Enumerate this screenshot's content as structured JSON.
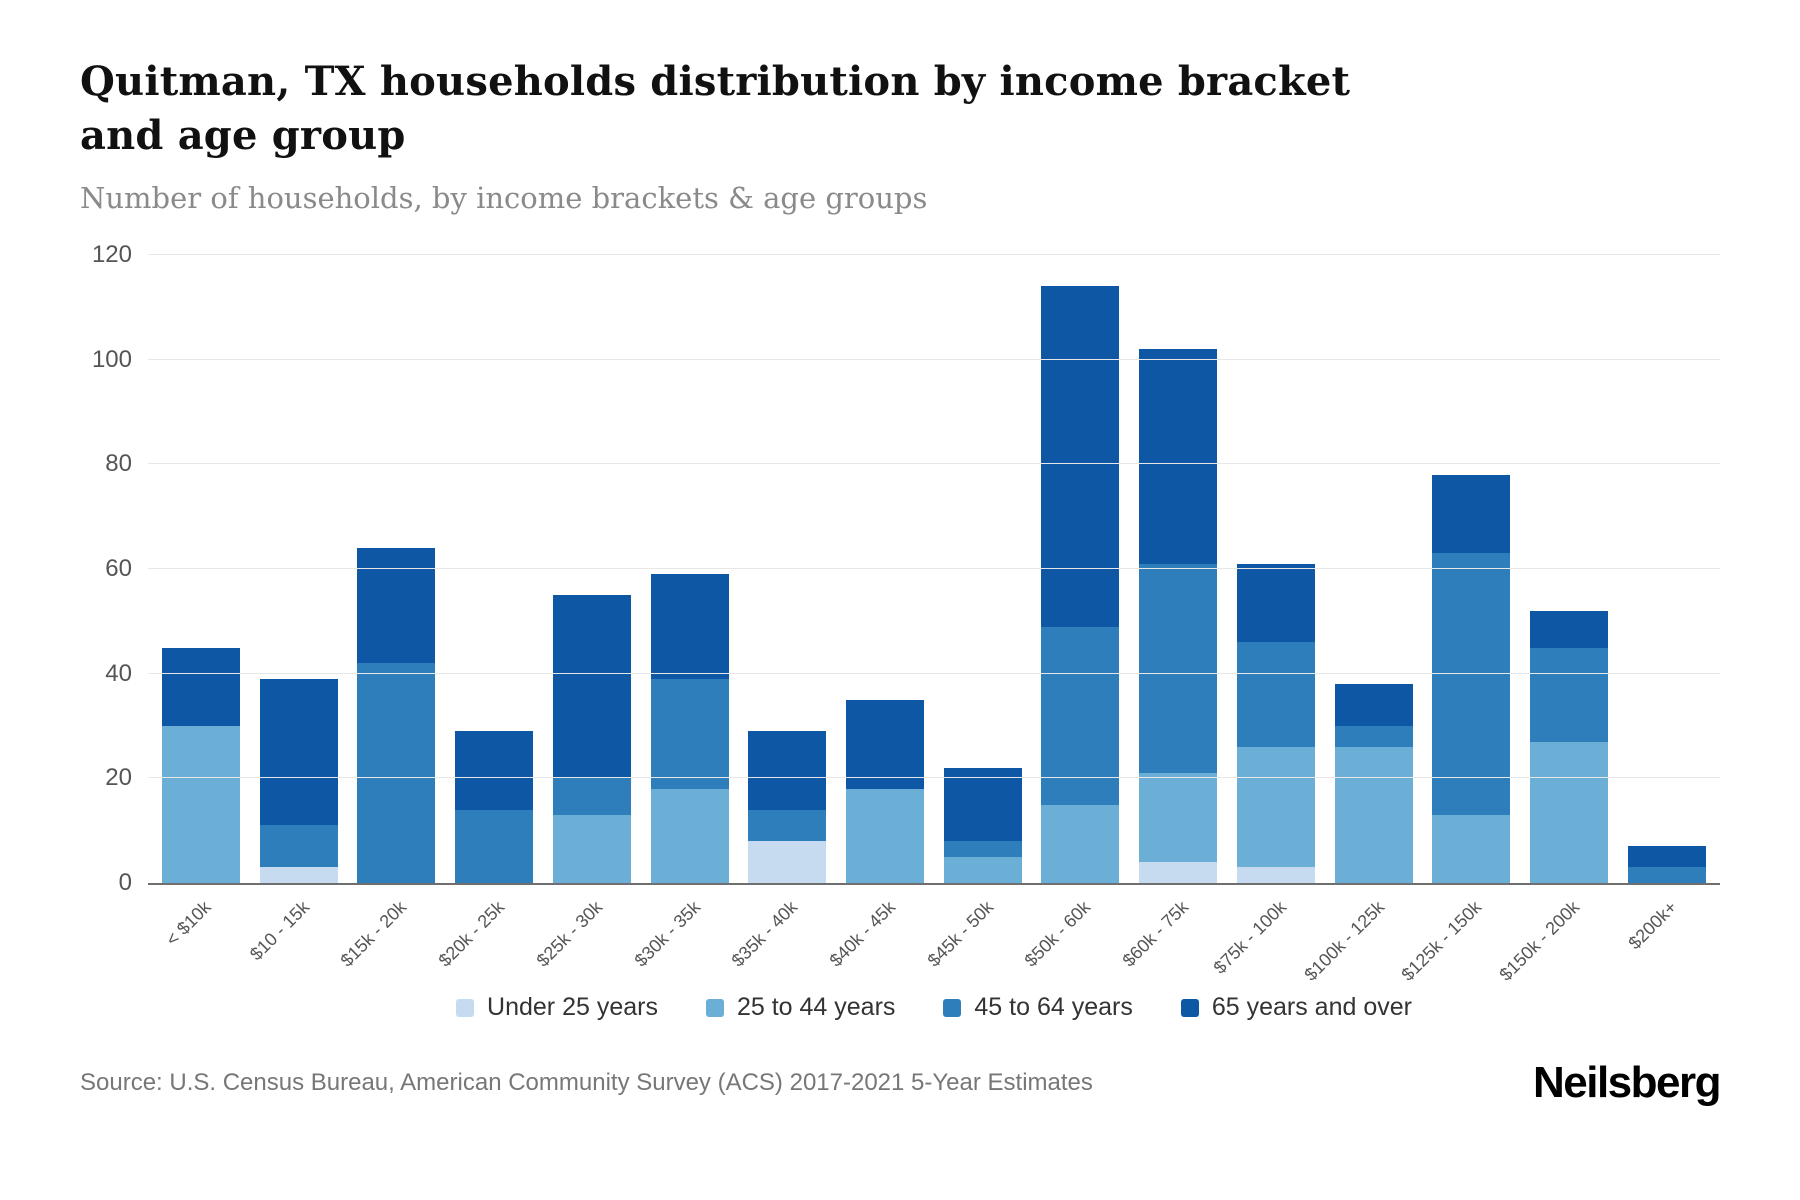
{
  "header": {
    "title": "Quitman, TX households distribution by income bracket and age group",
    "subtitle": "Number of households, by income brackets & age groups"
  },
  "chart_data": {
    "type": "bar",
    "stacked": true,
    "title": "Quitman, TX households distribution by income bracket and age group",
    "xlabel": "",
    "ylabel": "Number of households",
    "ylim": [
      0,
      120
    ],
    "yticks": [
      0,
      20,
      40,
      60,
      80,
      100,
      120
    ],
    "grid": true,
    "legend_position": "bottom",
    "categories": [
      "< $10k",
      "$10 - 15k",
      "$15k - 20k",
      "$20k - 25k",
      "$25k - 30k",
      "$30k - 35k",
      "$35k - 40k",
      "$40k - 45k",
      "$45k - 50k",
      "$50k - 60k",
      "$60k - 75k",
      "$75k - 100k",
      "$100k - 125k",
      "$125k - 150k",
      "$150k - 200k",
      "$200k+"
    ],
    "series": [
      {
        "name": "Under 25 years",
        "color": "#c6dbef",
        "values": [
          0,
          3,
          0,
          0,
          0,
          0,
          8,
          0,
          0,
          0,
          4,
          3,
          0,
          0,
          0,
          0
        ]
      },
      {
        "name": "25 to 44 years",
        "color": "#6baed6",
        "values": [
          30,
          0,
          0,
          0,
          13,
          18,
          0,
          18,
          5,
          15,
          17,
          23,
          26,
          13,
          27,
          0
        ]
      },
      {
        "name": "45 to 64 years",
        "color": "#2e7ebc",
        "values": [
          0,
          8,
          42,
          14,
          7,
          21,
          6,
          0,
          3,
          34,
          40,
          20,
          4,
          50,
          18,
          3
        ]
      },
      {
        "name": "65 years and over",
        "color": "#0d57a5",
        "values": [
          15,
          28,
          22,
          15,
          35,
          20,
          15,
          17,
          14,
          65,
          41,
          15,
          8,
          15,
          7,
          4
        ]
      }
    ],
    "totals": [
      45,
      39,
      64,
      29,
      55,
      59,
      29,
      35,
      22,
      114,
      102,
      61,
      38,
      78,
      52,
      7
    ]
  },
  "footer": {
    "source": "Source: U.S. Census Bureau, American Community Survey (ACS) 2017-2021 5-Year Estimates",
    "brand": "Neilsberg"
  }
}
